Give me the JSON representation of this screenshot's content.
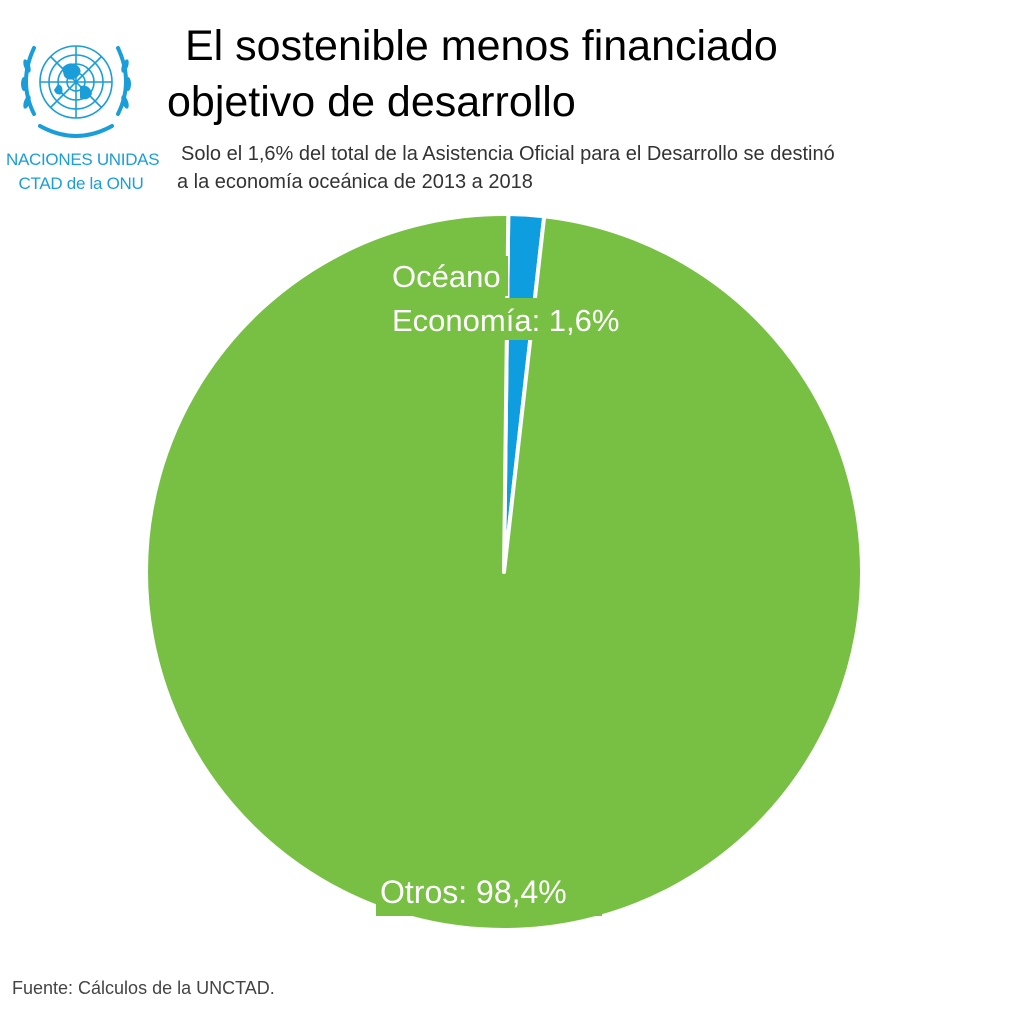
{
  "logo": {
    "line1": "NACIONES UNIDAS",
    "line2": "CTAD de la ONU",
    "color": "#1a9ed9"
  },
  "title_lines": [
    "El sostenible menos financiado",
    "objetivo de desarrollo"
  ],
  "subtitle_lines": [
    "Solo el 1,6% del total de la Asistencia Oficial para el Desarrollo se destinó",
    "a la economía oceánica de 2013 a 2018"
  ],
  "chart_data": {
    "type": "pie",
    "slices": [
      {
        "label_lines": [
          "Océano",
          "Economía: 1,6%"
        ],
        "value": 1.6,
        "color": "#0e9ee0"
      },
      {
        "label_lines": [
          "Otros: 98,4%"
        ],
        "value": 98.4,
        "color": "#77c044"
      }
    ],
    "start": "12 o'clock",
    "direction": "clockwise"
  },
  "source": "Fuente: Cálculos de la UNCTAD."
}
